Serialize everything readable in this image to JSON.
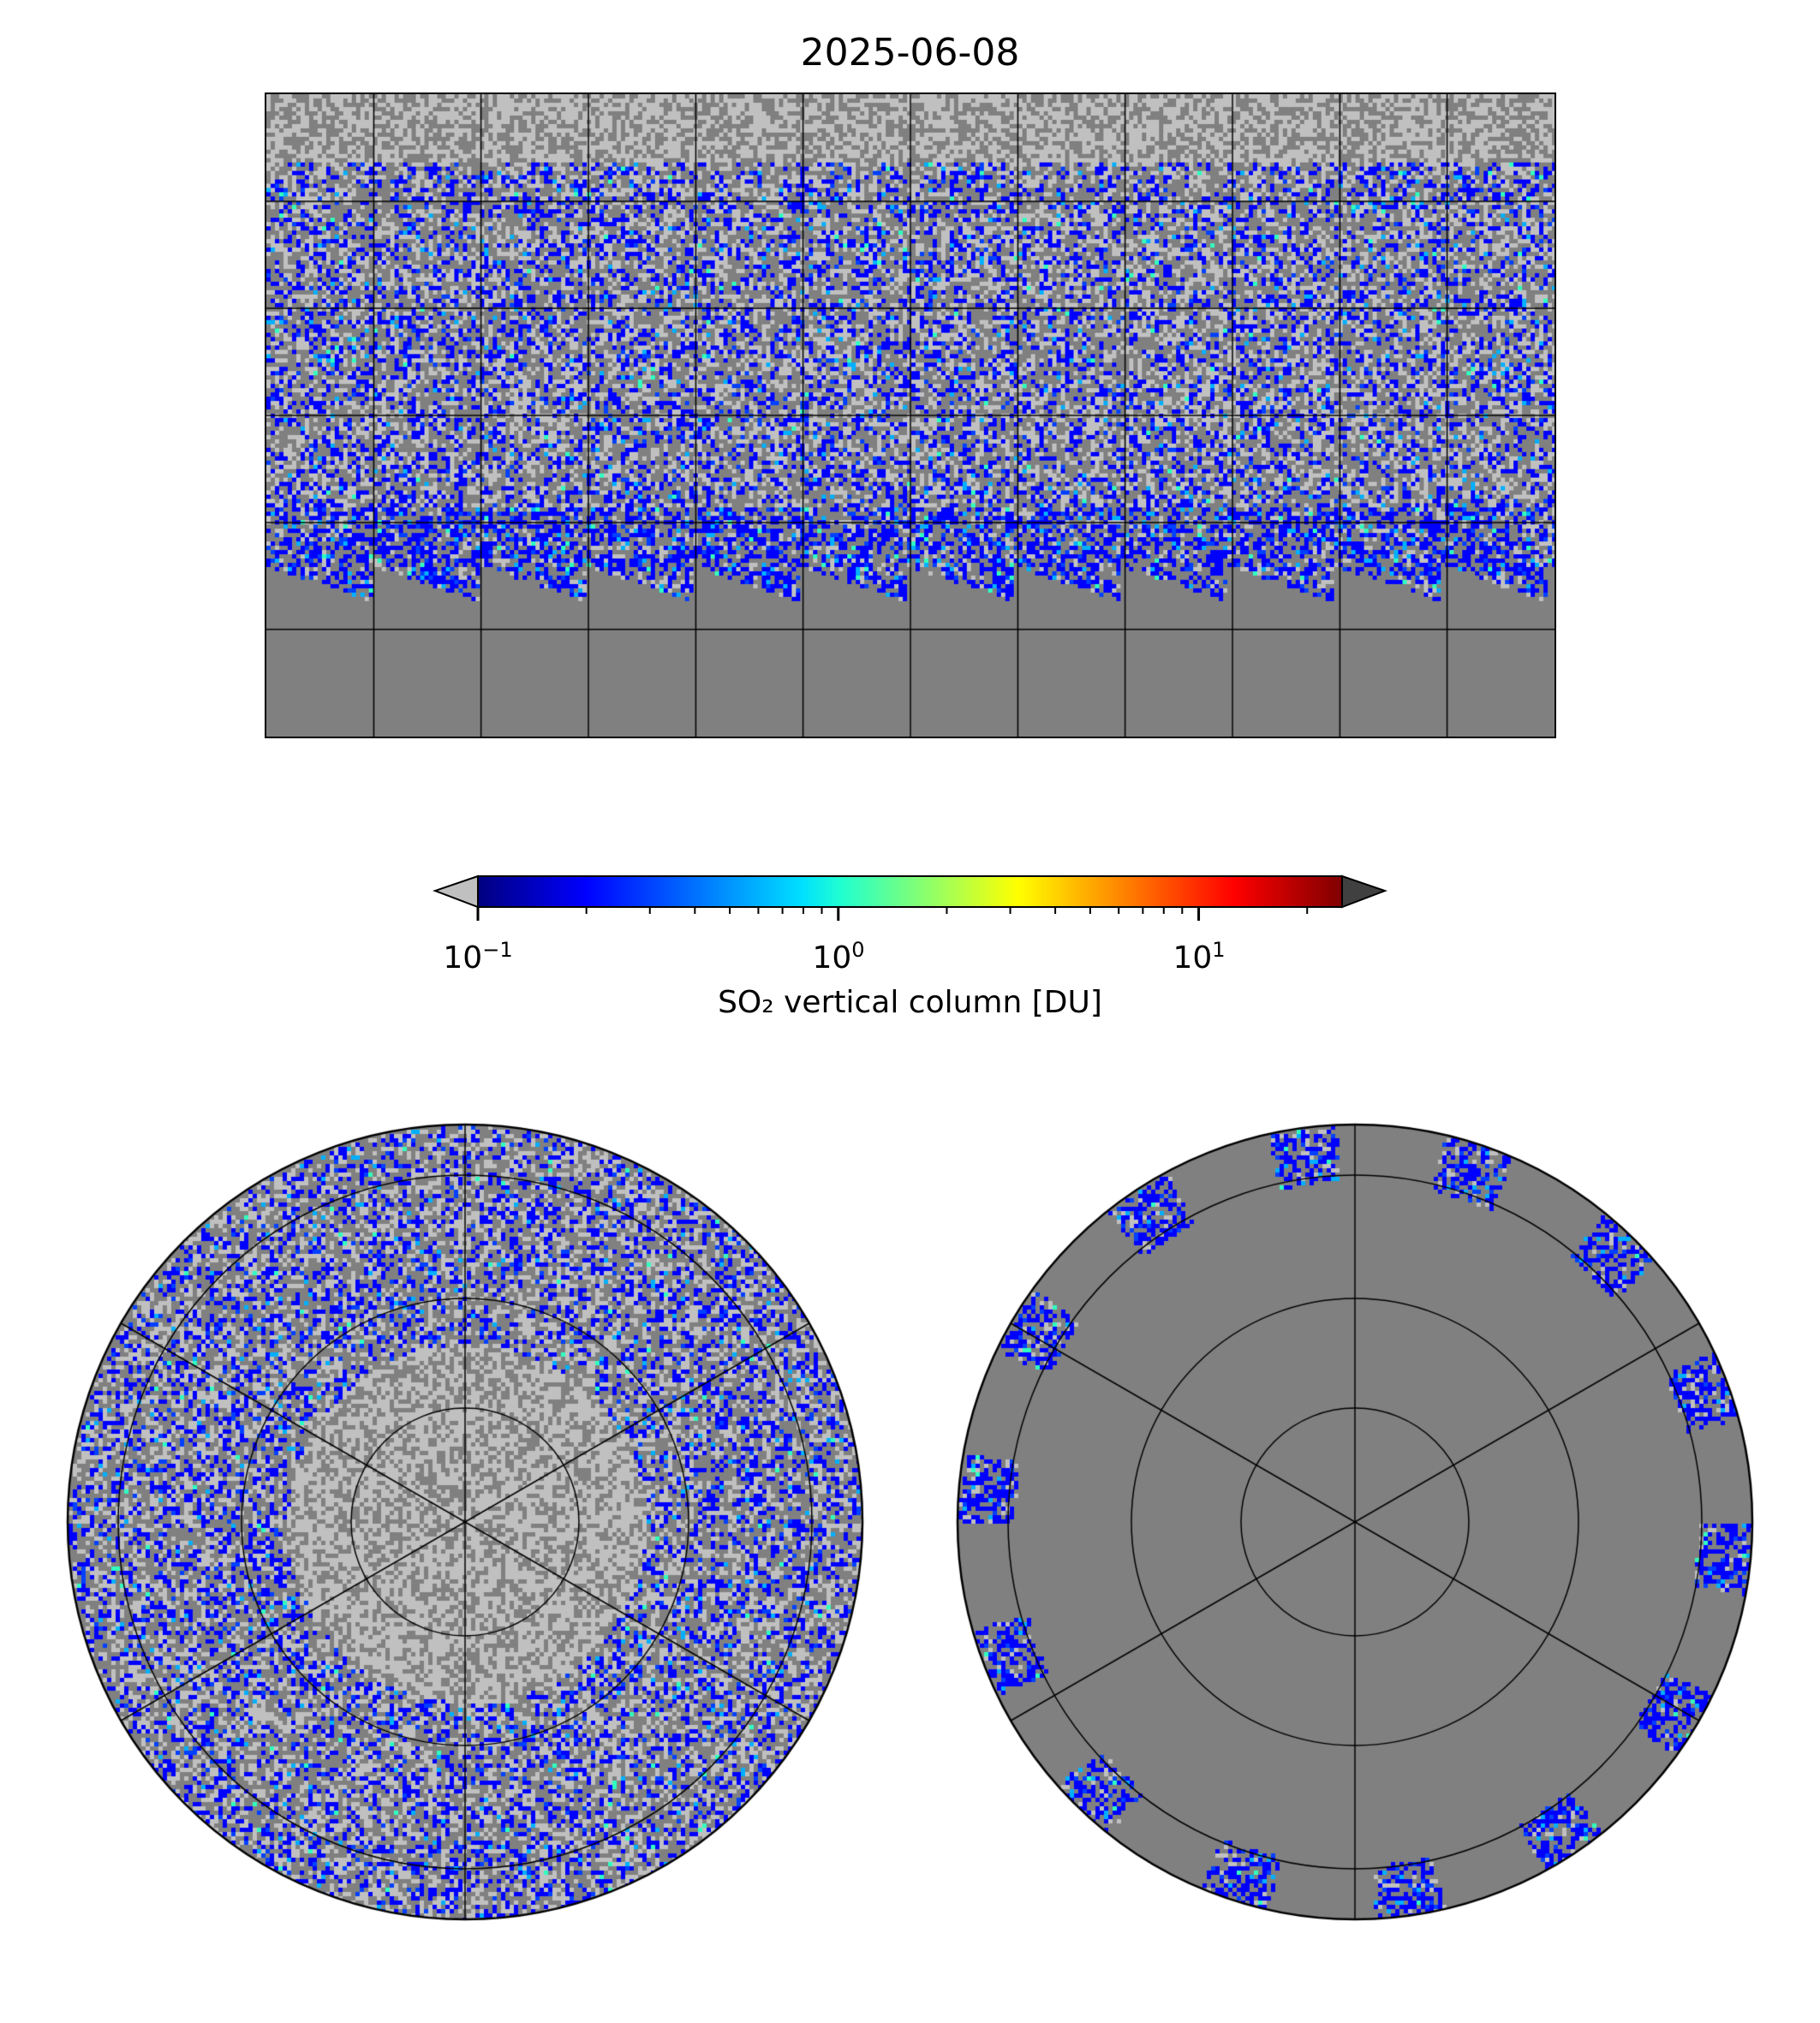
{
  "figure": {
    "title": "2025-06-08"
  },
  "colorbar": {
    "label": "SO₂ vertical column [DU]",
    "scale": "log",
    "range": [
      0.1,
      25
    ],
    "extend": "both",
    "colormap": "jet",
    "under_color": "#c0c0c0",
    "over_color": "#404040",
    "ticks": [
      {
        "value": 0.1,
        "base": "10",
        "exp": "−1"
      },
      {
        "value": 1,
        "base": "10",
        "exp": "0"
      },
      {
        "value": 10,
        "base": "10",
        "exp": "1"
      }
    ]
  },
  "colors": {
    "no_data": "#808080",
    "below_range": "#c0c0c0",
    "gridline": "#000000"
  },
  "panels": {
    "global": {
      "projection": "PlateCarree",
      "grid_lon_step": 30,
      "grid_lat_step": 30
    },
    "north": {
      "projection": "NorthPolarStereo"
    },
    "south": {
      "projection": "SouthPolarStereo"
    }
  }
}
